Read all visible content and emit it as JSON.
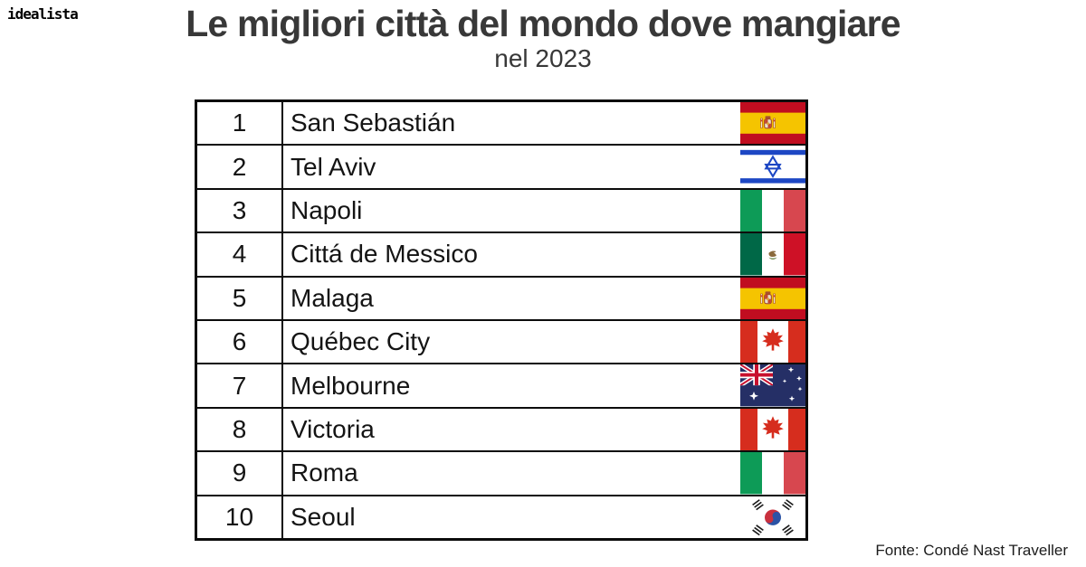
{
  "branding": {
    "logo_text": "idealista"
  },
  "header": {
    "title": "Le migliori città del mondo dove mangiare",
    "subtitle": "nel 2023"
  },
  "footer": {
    "source": "Fonte: Condé Nast Traveller"
  },
  "colors": {
    "title_text": "#383838",
    "body_text": "#141414",
    "table_border": "#0c0c0c",
    "background": "#ffffff"
  },
  "chart_data": {
    "type": "table",
    "title": "Le migliori città del mondo dove mangiare nel 2023",
    "columns": [
      "rank",
      "city",
      "country_flag"
    ],
    "rows": [
      {
        "rank": "1",
        "city": "San Sebastián",
        "country": "spain",
        "flag_code": "es"
      },
      {
        "rank": "2",
        "city": "Tel Aviv",
        "country": "israel",
        "flag_code": "il"
      },
      {
        "rank": "3",
        "city": "Napoli",
        "country": "italy",
        "flag_code": "it"
      },
      {
        "rank": "4",
        "city": "Cittá de Messico",
        "country": "mexico",
        "flag_code": "mx"
      },
      {
        "rank": "5",
        "city": "Malaga",
        "country": "spain",
        "flag_code": "es"
      },
      {
        "rank": "6",
        "city": "Québec City",
        "country": "canada",
        "flag_code": "ca"
      },
      {
        "rank": "7",
        "city": "Melbourne",
        "country": "australia",
        "flag_code": "au"
      },
      {
        "rank": "8",
        "city": "Victoria",
        "country": "canada",
        "flag_code": "ca"
      },
      {
        "rank": "9",
        "city": "Roma",
        "country": "italy",
        "flag_code": "it"
      },
      {
        "rank": "10",
        "city": "Seoul",
        "country": "south-korea",
        "flag_code": "kr"
      }
    ],
    "source": "Condé Nast Traveller",
    "legend_position": "none",
    "grid": "table-borders"
  }
}
